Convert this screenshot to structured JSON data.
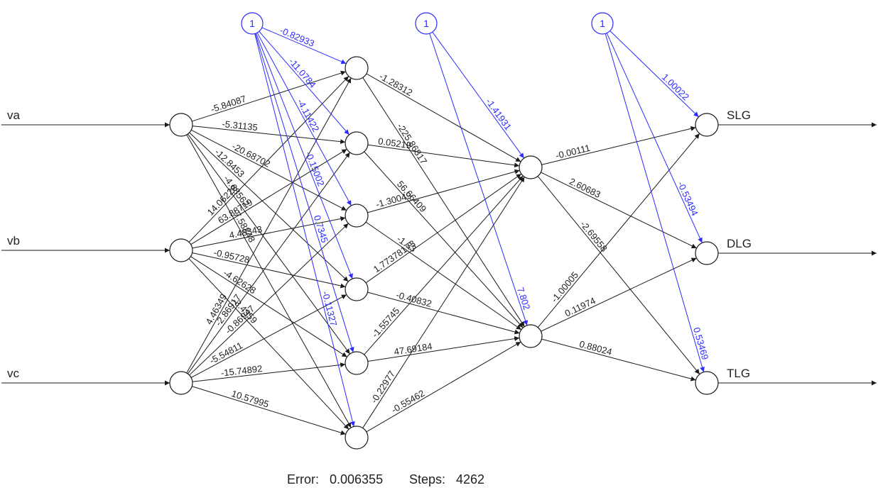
{
  "diagram": {
    "inputs": [
      "va",
      "vb",
      "vc"
    ],
    "outputs": [
      "SLG",
      "DLG",
      "TLG"
    ],
    "bias_label": "1",
    "weights_input_hidden1": [
      "-5.84087",
      "-5.31135",
      "-20.68702",
      "-12.8453",
      "-4.68562",
      "-7.58848",
      "14.06228",
      "63.88719",
      "4.48343",
      "-0.95728",
      "-4.62628",
      "-3.4359",
      "4.46349",
      "-2.86917",
      "-0.86947",
      "-5.54811",
      "-15.74892",
      "10.57995"
    ],
    "weights_bias_hidden1": [
      "-0.82933",
      "-11.0784",
      "-4.11422",
      "-0.15002",
      "0.7345",
      "-0.11327"
    ],
    "weights_hidden1_hidden2": [
      "-1.28312",
      "-225.86817",
      "0.05219",
      "56.66409",
      "-1.30049",
      "-1.33",
      "1.77378173",
      "-0.40832",
      "-1.55745",
      "47.69184",
      "-0.22977",
      "-0.55462"
    ],
    "weights_bias_hidden2": [
      "-1.41931",
      "7.802"
    ],
    "weights_hidden2_output": [
      "-0.00111",
      "2.60683",
      "-2.69558",
      "-1.00005",
      "0.11974",
      "0.88024"
    ],
    "weights_bias_output": [
      "1.00022",
      "-0.53494",
      "0.53469"
    ],
    "footer": {
      "error_label": "Error:",
      "error_value": "0.006355",
      "steps_label": "Steps:",
      "steps_value": "4262"
    }
  }
}
